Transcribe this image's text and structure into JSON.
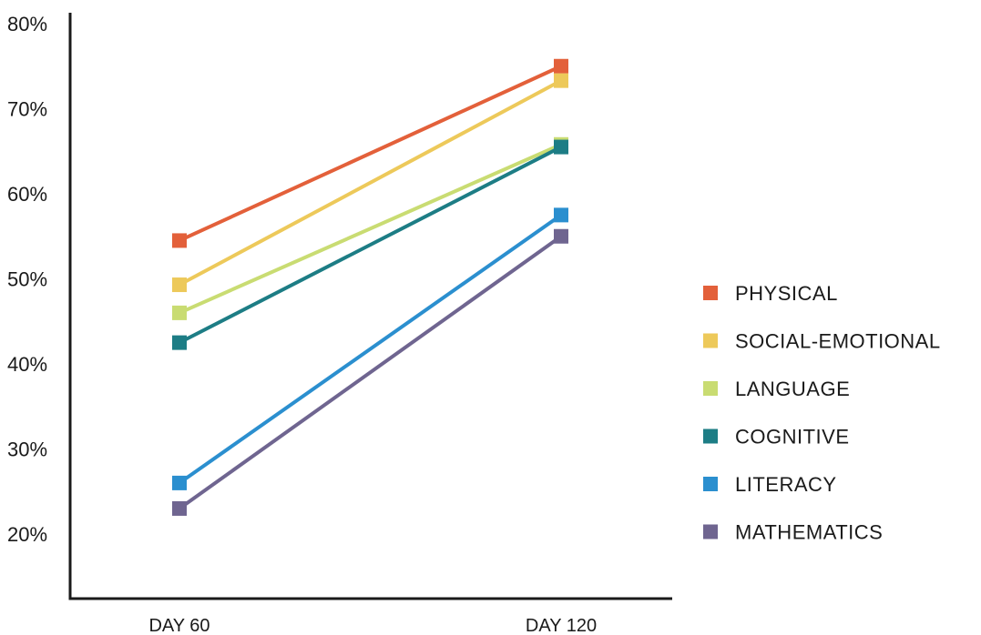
{
  "chart_data": {
    "type": "line",
    "title": "",
    "xlabel": "",
    "ylabel": "",
    "categories": [
      "DAY 60",
      "DAY 120"
    ],
    "y_ticks": [
      "20%",
      "30%",
      "40%",
      "50%",
      "60%",
      "70%",
      "80%"
    ],
    "ylim": [
      13,
      80
    ],
    "grid": false,
    "legend_position": "right",
    "series": [
      {
        "name": "PHYSICAL",
        "values": [
          54.5,
          75
        ],
        "color": "#e3603a"
      },
      {
        "name": "SOCIAL-EMOTIONAL",
        "values": [
          49.3,
          73.3
        ],
        "color": "#edc95a"
      },
      {
        "name": "LANGUAGE",
        "values": [
          46,
          65.8
        ],
        "color": "#c9dc72"
      },
      {
        "name": "COGNITIVE",
        "values": [
          42.5,
          65.5
        ],
        "color": "#1d7d85"
      },
      {
        "name": "LITERACY",
        "values": [
          26,
          57.5
        ],
        "color": "#2b8fcf"
      },
      {
        "name": "MATHEMATICS",
        "values": [
          23,
          55
        ],
        "color": "#6f6590"
      }
    ]
  }
}
